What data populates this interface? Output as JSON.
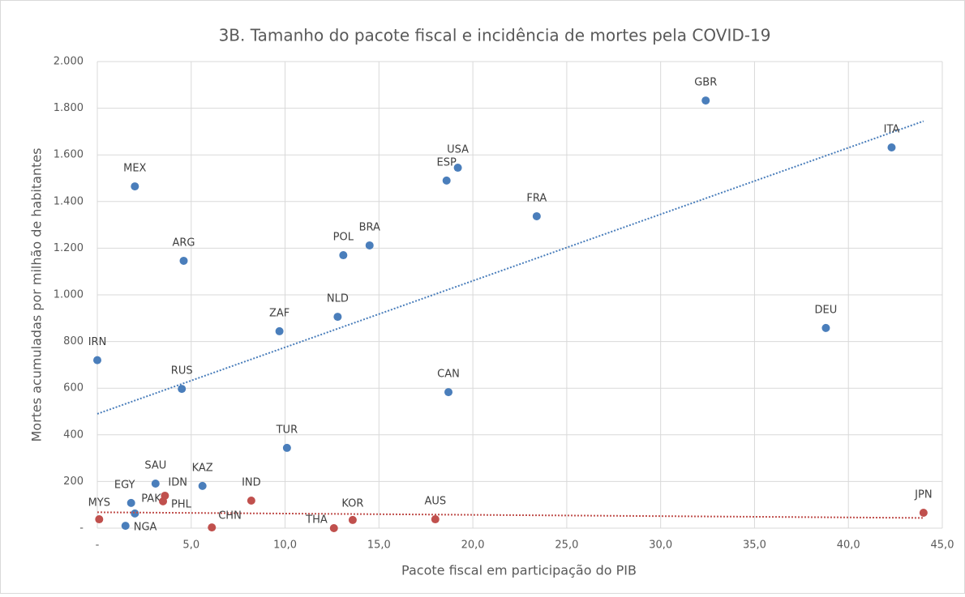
{
  "chart_data": {
    "type": "scatter",
    "title": "3B. Tamanho do pacote fiscal e incidência de mortes pela COVID-19",
    "x_label": "Pacote fiscal em participação do PIB",
    "y_label": "Mortes acumuladas por milhão de habitantes",
    "xlim": [
      0,
      45
    ],
    "ylim": [
      0,
      2000
    ],
    "xticks": [
      {
        "value": 0,
        "label": "-"
      },
      {
        "value": 5,
        "label": "5,0"
      },
      {
        "value": 10,
        "label": "10,0"
      },
      {
        "value": 15,
        "label": "15,0"
      },
      {
        "value": 20,
        "label": "20,0"
      },
      {
        "value": 25,
        "label": "25,0"
      },
      {
        "value": 30,
        "label": "30,0"
      },
      {
        "value": 35,
        "label": "35,0"
      },
      {
        "value": 40,
        "label": "40,0"
      },
      {
        "value": 45,
        "label": "45,0"
      }
    ],
    "yticks": [
      {
        "value": 0,
        "label": "-"
      },
      200,
      400,
      600,
      800,
      {
        "value": 1000,
        "label": "1.000"
      },
      {
        "value": 1200,
        "label": "1.200"
      },
      {
        "value": 1400,
        "label": "1.400"
      },
      {
        "value": 1600,
        "label": "1.600"
      },
      {
        "value": 1800,
        "label": "1.800"
      },
      {
        "value": 2000,
        "label": "2.000"
      }
    ],
    "grid": true,
    "series": [
      {
        "color": "#4a7ebb",
        "trendline": true,
        "labels": [
          "IRN",
          "MEX",
          "ARG",
          "RUS",
          "SAU",
          "EGY",
          "PAK",
          "NGA",
          "KAZ",
          "ZAF",
          "TUR",
          "NLD",
          "POL",
          "BRA",
          "ESP",
          "USA",
          "CAN",
          "FRA",
          "GBR",
          "ITA",
          "DEU"
        ],
        "x": [
          0.0,
          2.0,
          4.6,
          4.5,
          3.1,
          1.8,
          2.0,
          1.5,
          5.6,
          9.7,
          10.1,
          12.8,
          13.1,
          14.5,
          18.6,
          19.2,
          18.7,
          23.4,
          32.4,
          42.3,
          38.8
        ],
        "values": [
          720,
          1465,
          1146,
          597,
          191,
          108,
          63,
          10,
          181,
          844,
          344,
          906,
          1170,
          1212,
          1490,
          1545,
          583,
          1337,
          1833,
          1632,
          858
        ]
      },
      {
        "color": "#c0504d",
        "trendline": true,
        "labels": [
          "MYS",
          "IDN",
          "PHL",
          "CHN",
          "IND",
          "THA",
          "KOR",
          "AUS",
          "JPN"
        ],
        "x": [
          0.1,
          3.6,
          3.5,
          6.1,
          8.2,
          12.6,
          13.6,
          18.0,
          44.0
        ],
        "values": [
          38,
          139,
          115,
          3,
          118,
          0,
          35,
          38,
          66
        ]
      }
    ]
  }
}
